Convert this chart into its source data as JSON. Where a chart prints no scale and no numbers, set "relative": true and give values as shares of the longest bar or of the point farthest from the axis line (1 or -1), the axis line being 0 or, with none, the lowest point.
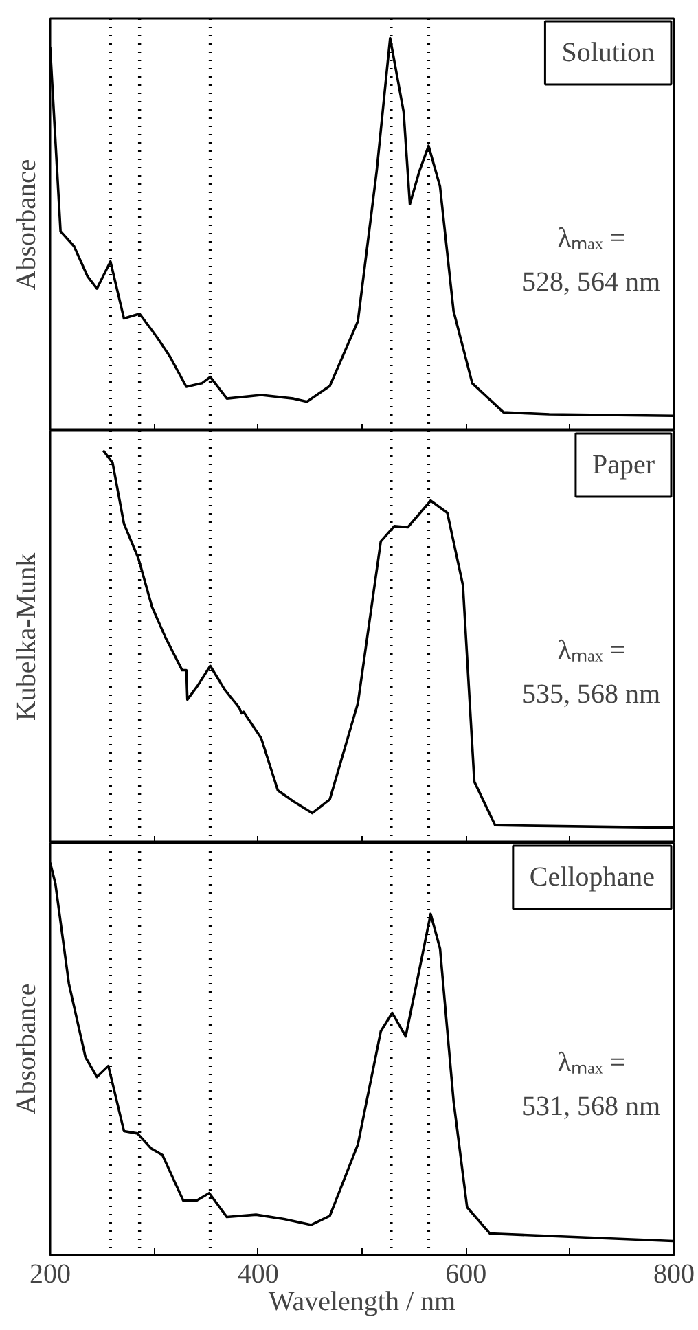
{
  "chart_data": [
    {
      "type": "line",
      "ylabel": "Absorbance",
      "relative": true,
      "xlim": [
        200,
        800
      ],
      "xticks": [
        {
          "value": 200,
          "label": null
        },
        {
          "value": 300,
          "label": null
        },
        {
          "value": 400,
          "label": null
        },
        {
          "value": 500,
          "label": null
        },
        {
          "value": 600,
          "label": null
        },
        {
          "value": 700,
          "label": null
        },
        {
          "value": 800,
          "label": null
        }
      ],
      "tick_labels": false,
      "grid": false,
      "line_style": "solid",
      "marker": "none",
      "annotations": [
        "Solution",
        "λₘₐₓ =",
        "528, 564 nm"
      ],
      "ref_lines": [
        {
          "axis": "x",
          "value": 258,
          "label": null,
          "color": "#000000",
          "line_style": "dotted"
        },
        {
          "axis": "x",
          "value": 286,
          "label": null,
          "color": "#000000",
          "line_style": "dotted"
        },
        {
          "axis": "x",
          "value": 354,
          "label": null,
          "color": "#000000",
          "line_style": "dotted"
        },
        {
          "axis": "x",
          "value": 528,
          "label": null,
          "color": "#000000",
          "line_style": "dotted"
        },
        {
          "axis": "x",
          "value": 564,
          "label": null,
          "color": "#000000",
          "line_style": "dotted"
        }
      ],
      "series": [
        {
          "color": "#000000",
          "x": [
            200,
            210,
            223,
            236,
            245,
            258,
            271,
            286,
            302,
            315,
            331,
            346,
            354,
            370,
            403,
            434,
            447,
            469,
            496,
            514,
            527,
            540,
            546,
            555,
            564,
            575,
            588,
            606,
            636,
            680,
            799
          ],
          "values": [
            0.977,
            0.508,
            0.47,
            0.393,
            0.362,
            0.431,
            0.286,
            0.298,
            0.241,
            0.19,
            0.112,
            0.121,
            0.137,
            0.082,
            0.091,
            0.082,
            0.074,
            0.114,
            0.279,
            0.66,
            1.0,
            0.812,
            0.577,
            0.66,
            0.726,
            0.622,
            0.305,
            0.121,
            0.047,
            0.042,
            0.038
          ]
        }
      ]
    },
    {
      "type": "line",
      "ylabel": "Kubelka-Munk",
      "relative": true,
      "xlim": [
        200,
        800
      ],
      "xticks": [
        {
          "value": 200,
          "label": null
        },
        {
          "value": 300,
          "label": null
        },
        {
          "value": 400,
          "label": null
        },
        {
          "value": 500,
          "label": null
        },
        {
          "value": 600,
          "label": null
        },
        {
          "value": 700,
          "label": null
        },
        {
          "value": 800,
          "label": null
        }
      ],
      "tick_labels": false,
      "grid": false,
      "line_style": "solid",
      "marker": "none",
      "annotations": [
        "Paper",
        "λₘₐₓ =",
        "535, 568 nm"
      ],
      "ref_lines": [
        {
          "axis": "x",
          "value": 258,
          "label": null,
          "color": "#000000",
          "line_style": "dotted"
        },
        {
          "axis": "x",
          "value": 286,
          "label": null,
          "color": "#000000",
          "line_style": "dotted"
        },
        {
          "axis": "x",
          "value": 354,
          "label": null,
          "color": "#000000",
          "line_style": "dotted"
        },
        {
          "axis": "x",
          "value": 528,
          "label": null,
          "color": "#000000",
          "line_style": "dotted"
        },
        {
          "axis": "x",
          "value": 564,
          "label": null,
          "color": "#000000",
          "line_style": "dotted"
        }
      ],
      "series": [
        {
          "color": "#000000",
          "x": [
            251,
            260,
            271,
            285,
            298,
            311,
            327,
            331,
            332,
            342,
            354,
            368,
            382,
            384,
            386,
            403,
            419,
            434,
            452,
            469,
            496,
            518,
            531,
            544,
            566,
            582,
            597,
            608,
            628,
            799
          ],
          "values": [
            1.0,
            0.969,
            0.813,
            0.724,
            0.601,
            0.523,
            0.44,
            0.44,
            0.365,
            0.401,
            0.451,
            0.39,
            0.344,
            0.33,
            0.334,
            0.267,
            0.134,
            0.106,
            0.076,
            0.111,
            0.356,
            0.768,
            0.807,
            0.804,
            0.872,
            0.841,
            0.657,
            0.156,
            0.045,
            0.039
          ]
        }
      ]
    },
    {
      "type": "line",
      "xlabel": "Wavelength / nm",
      "ylabel": "Absorbance",
      "relative": true,
      "xlim": [
        200,
        800
      ],
      "xticks": [
        200,
        {
          "value": 300,
          "label": null
        },
        400,
        {
          "value": 500,
          "label": null
        },
        600,
        {
          "value": 700,
          "label": null
        },
        800
      ],
      "tick_labels": "x",
      "grid": false,
      "line_style": "solid",
      "marker": "none",
      "annotations": [
        "Cellophane",
        "λₘₐₓ =",
        "531, 568 nm"
      ],
      "ref_lines": [
        {
          "axis": "x",
          "value": 258,
          "label": null,
          "color": "#000000",
          "line_style": "dotted"
        },
        {
          "axis": "x",
          "value": 286,
          "label": null,
          "color": "#000000",
          "line_style": "dotted"
        },
        {
          "axis": "x",
          "value": 354,
          "label": null,
          "color": "#000000",
          "line_style": "dotted"
        },
        {
          "axis": "x",
          "value": 528,
          "label": null,
          "color": "#000000",
          "line_style": "dotted"
        },
        {
          "axis": "x",
          "value": 564,
          "label": null,
          "color": "#000000",
          "line_style": "dotted"
        }
      ],
      "series": [
        {
          "color": "#000000",
          "x": [
            200,
            205,
            218,
            234,
            245,
            256,
            271,
            284,
            297,
            308,
            328,
            341,
            353,
            370,
            398,
            425,
            451,
            469,
            496,
            518,
            529,
            542,
            555,
            566,
            575,
            588,
            601,
            623,
            799
          ],
          "values": [
            1.0,
            0.947,
            0.692,
            0.504,
            0.454,
            0.482,
            0.316,
            0.31,
            0.272,
            0.255,
            0.139,
            0.139,
            0.158,
            0.097,
            0.103,
            0.092,
            0.077,
            0.1,
            0.282,
            0.57,
            0.617,
            0.557,
            0.725,
            0.869,
            0.781,
            0.393,
            0.122,
            0.055,
            0.036
          ]
        }
      ]
    }
  ]
}
